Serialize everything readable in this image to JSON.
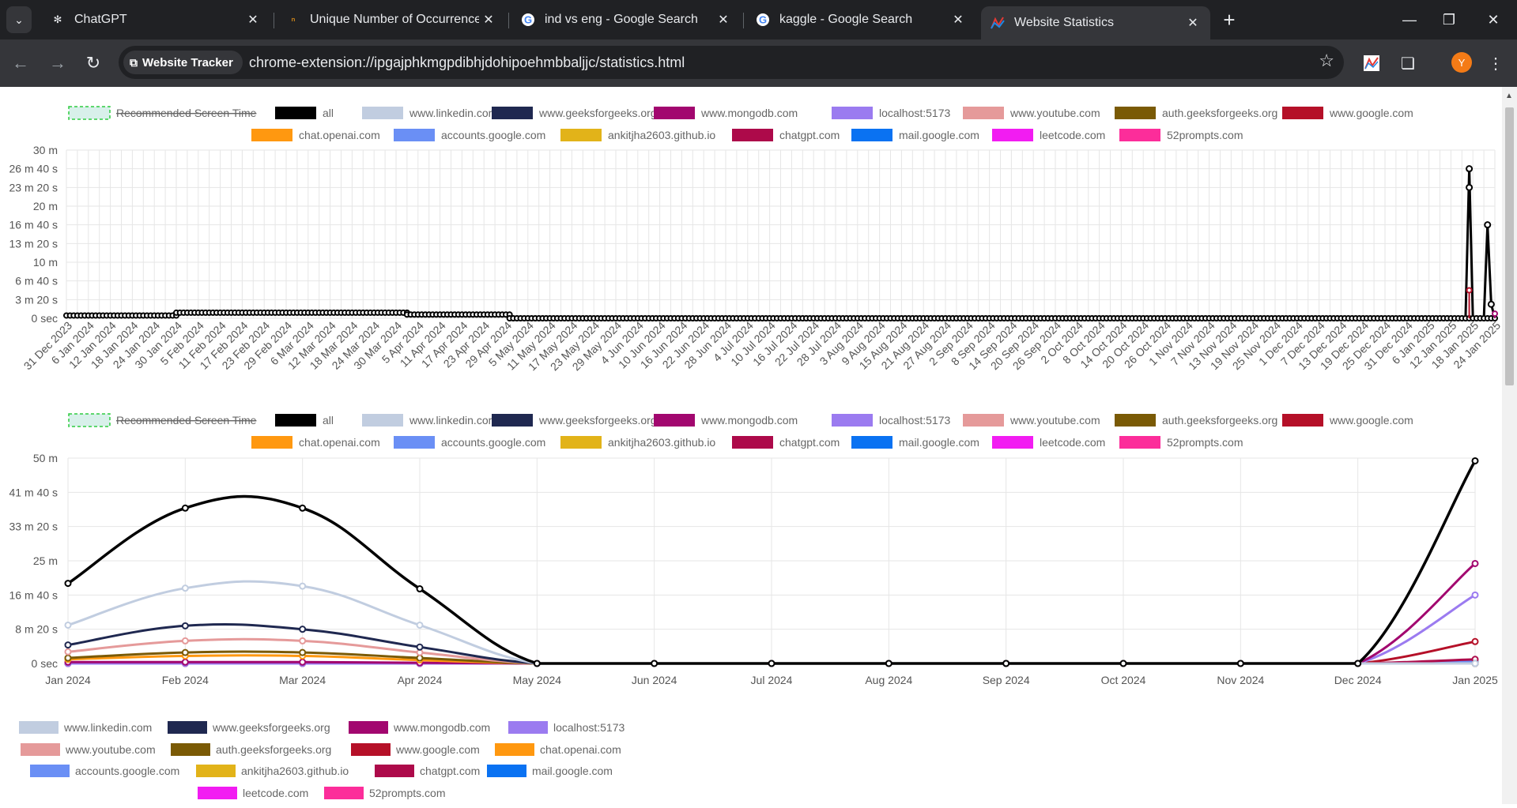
{
  "browser": {
    "tabs": [
      {
        "title": "ChatGPT",
        "favicon": "chatgpt-icon",
        "active": false
      },
      {
        "title": "Unique Number of Occurrences",
        "favicon": "leetcode-icon",
        "active": false
      },
      {
        "title": "ind vs eng - Google Search",
        "favicon": "google-icon",
        "active": false
      },
      {
        "title": "kaggle - Google Search",
        "favicon": "google-icon",
        "active": false
      },
      {
        "title": "Website Statistics",
        "favicon": "stats-icon",
        "active": true
      }
    ],
    "site_chip": "Website Tracker",
    "url": "chrome-extension://ipgajphkmgpdibhjdohipoehmbbaljjc/statistics.html",
    "avatar_letter": "Y"
  },
  "legend_items": [
    {
      "label": "Recommended Screen Time",
      "color": "#d8f0ea",
      "hidden": true
    },
    {
      "label": "all",
      "color": "#000000"
    },
    {
      "label": "www.linkedin.com",
      "color": "#c1cde0"
    },
    {
      "label": "www.geeksforgeeks.org",
      "color": "#1f2850"
    },
    {
      "label": "www.mongodb.com",
      "color": "#a2076f"
    },
    {
      "label": "localhost:5173",
      "color": "#9b7bf0"
    },
    {
      "label": "www.youtube.com",
      "color": "#e59a9a"
    },
    {
      "label": "auth.geeksforgeeks.org",
      "color": "#7a5a05"
    },
    {
      "label": "www.google.com",
      "color": "#b51028"
    },
    {
      "label": "chat.openai.com",
      "color": "#ff9810"
    },
    {
      "label": "accounts.google.com",
      "color": "#6a8ff5"
    },
    {
      "label": "ankitjha2603.github.io",
      "color": "#e2b319"
    },
    {
      "label": "chatgpt.com",
      "color": "#ad0a4a"
    },
    {
      "label": "mail.google.com",
      "color": "#0a72f2"
    },
    {
      "label": "leetcode.com",
      "color": "#f21cf2"
    },
    {
      "label": "52prompts.com",
      "color": "#fc2d9a"
    }
  ],
  "chart_data": [
    {
      "type": "line",
      "ylim_seconds": [
        0,
        1800
      ],
      "y_tick_labels": [
        "0 sec",
        "3 m 20 s",
        "6 m 40 s",
        "10 m",
        "13 m 20 s",
        "16 m 40 s",
        "20 m",
        "23 m 20 s",
        "26 m 40 s",
        "30 m"
      ],
      "x_tick_labels": [
        "31 Dec 2023",
        "6 Jan 2024",
        "12 Jan 2024",
        "18 Jan 2024",
        "24 Jan 2024",
        "30 Jan 2024",
        "5 Feb 2024",
        "11 Feb 2024",
        "17 Feb 2024",
        "23 Feb 2024",
        "29 Feb 2024",
        "6 Mar 2024",
        "12 Mar 2024",
        "18 Mar 2024",
        "24 Mar 2024",
        "30 Mar 2024",
        "5 Apr 2024",
        "11 Apr 2024",
        "17 Apr 2024",
        "23 Apr 2024",
        "29 Apr 2024",
        "5 May 2024",
        "11 May 2024",
        "17 May 2024",
        "23 May 2024",
        "29 May 2024",
        "4 Jun 2024",
        "10 Jun 2024",
        "16 Jun 2024",
        "22 Jun 2024",
        "28 Jun 2024",
        "4 Jul 2024",
        "10 Jul 2024",
        "16 Jul 2024",
        "22 Jul 2024",
        "28 Jul 2024",
        "3 Aug 2024",
        "9 Aug 2024",
        "15 Aug 2024",
        "21 Aug 2024",
        "27 Aug 2024",
        "2 Sep 2024",
        "8 Sep 2024",
        "14 Sep 2024",
        "20 Sep 2024",
        "26 Sep 2024",
        "2 Oct 2024",
        "8 Oct 2024",
        "14 Oct 2024",
        "20 Oct 2024",
        "26 Oct 2024",
        "1 Nov 2024",
        "7 Nov 2024",
        "13 Nov 2024",
        "19 Nov 2024",
        "25 Nov 2024",
        "1 Dec 2024",
        "7 Dec 2024",
        "13 Dec 2024",
        "19 Dec 2024",
        "25 Dec 2024",
        "31 Dec 2024",
        "6 Jan 2025",
        "12 Jan 2025",
        "18 Jan 2025",
        "24 Jan 2025"
      ],
      "series": [
        {
          "name": "all",
          "color": "#000000",
          "segments": [
            {
              "from": "31 Dec 2023",
              "to": "30 Jan 2024",
              "value_seconds": 30
            },
            {
              "from": "30 Jan 2024",
              "to": "2 Apr 2024",
              "value_seconds": 60
            },
            {
              "from": "2 Apr 2024",
              "to": "30 Apr 2024",
              "value_seconds": 40
            },
            {
              "from": "30 Apr 2024",
              "to": "24 Jan 2025",
              "value_seconds": 0
            }
          ],
          "peaks": [
            {
              "date": "17 Jan 2025",
              "value_seconds": 1600
            },
            {
              "date": "17 Jan 2025",
              "value_seconds": 1400
            },
            {
              "date": "22 Jan 2025",
              "value_seconds": 1000
            },
            {
              "date": "23 Jan 2025",
              "value_seconds": 150
            }
          ]
        },
        {
          "name": "www.google.com",
          "color": "#b51028",
          "peaks": [
            {
              "date": "17 Jan 2025",
              "value_seconds": 300
            }
          ]
        },
        {
          "name": "www.mongodb.com",
          "color": "#a2076f",
          "peaks": [
            {
              "date": "24 Jan 2025",
              "value_seconds": 50
            }
          ]
        }
      ]
    },
    {
      "type": "line",
      "ylim_seconds": [
        0,
        3000
      ],
      "y_tick_labels": [
        "0 sec",
        "8 m 20 s",
        "16 m 40 s",
        "25 m",
        "33 m 20 s",
        "41 m 40 s",
        "50 m"
      ],
      "x": [
        "Jan 2024",
        "Feb 2024",
        "Mar 2024",
        "Apr 2024",
        "May 2024",
        "Jun 2024",
        "Jul 2024",
        "Aug 2024",
        "Sep 2024",
        "Oct 2024",
        "Nov 2024",
        "Dec 2024",
        "Jan 2025"
      ],
      "series": [
        {
          "name": "all",
          "color": "#000000",
          "values_seconds": [
            1170,
            2270,
            2270,
            1090,
            0,
            0,
            0,
            0,
            0,
            0,
            0,
            0,
            2960
          ]
        },
        {
          "name": "www.linkedin.com",
          "color": "#c1cde0",
          "values_seconds": [
            560,
            1100,
            1130,
            560,
            0,
            0,
            0,
            0,
            0,
            0,
            0,
            0,
            0
          ]
        },
        {
          "name": "www.geeksforgeeks.org",
          "color": "#1f2850",
          "values_seconds": [
            270,
            550,
            500,
            240,
            0,
            0,
            0,
            0,
            0,
            0,
            0,
            0,
            0
          ]
        },
        {
          "name": "www.youtube.com",
          "color": "#e59a9a",
          "values_seconds": [
            170,
            330,
            330,
            160,
            0,
            0,
            0,
            0,
            0,
            0,
            0,
            0,
            0
          ]
        },
        {
          "name": "auth.geeksforgeeks.org",
          "color": "#7a5a05",
          "values_seconds": [
            80,
            160,
            160,
            80,
            0,
            0,
            0,
            0,
            0,
            0,
            0,
            0,
            0
          ]
        },
        {
          "name": "chat.openai.com",
          "color": "#ff9810",
          "values_seconds": [
            60,
            110,
            110,
            50,
            0,
            0,
            0,
            0,
            0,
            0,
            0,
            0,
            0
          ]
        },
        {
          "name": "www.mongodb.com",
          "color": "#a2076f",
          "values_seconds": [
            20,
            20,
            20,
            10,
            0,
            0,
            0,
            0,
            0,
            0,
            0,
            0,
            1460
          ]
        },
        {
          "name": "localhost:5173",
          "color": "#9b7bf0",
          "values_seconds": [
            0,
            0,
            0,
            0,
            0,
            0,
            0,
            0,
            0,
            0,
            0,
            0,
            1000
          ]
        },
        {
          "name": "www.google.com",
          "color": "#b51028",
          "values_seconds": [
            0,
            0,
            0,
            0,
            0,
            0,
            0,
            0,
            0,
            0,
            0,
            0,
            320
          ]
        },
        {
          "name": "chatgpt.com",
          "color": "#ad0a4a",
          "values_seconds": [
            0,
            0,
            0,
            0,
            0,
            0,
            0,
            0,
            0,
            0,
            0,
            0,
            60
          ]
        },
        {
          "name": "accounts.google.com",
          "color": "#6a8ff5",
          "values_seconds": [
            0,
            0,
            0,
            0,
            0,
            0,
            0,
            0,
            0,
            0,
            0,
            0,
            30
          ]
        }
      ]
    },
    {
      "type": "pie",
      "legend_items": [
        {
          "label": "www.linkedin.com",
          "color": "#c1cde0"
        },
        {
          "label": "www.geeksforgeeks.org",
          "color": "#1f2850"
        },
        {
          "label": "www.mongodb.com",
          "color": "#a2076f"
        },
        {
          "label": "localhost:5173",
          "color": "#9b7bf0"
        },
        {
          "label": "www.youtube.com",
          "color": "#e59a9a"
        },
        {
          "label": "auth.geeksforgeeks.org",
          "color": "#7a5a05"
        },
        {
          "label": "www.google.com",
          "color": "#b51028"
        },
        {
          "label": "chat.openai.com",
          "color": "#ff9810"
        },
        {
          "label": "accounts.google.com",
          "color": "#6a8ff5"
        },
        {
          "label": "ankitjha2603.github.io",
          "color": "#e2b319"
        },
        {
          "label": "chatgpt.com",
          "color": "#ad0a4a"
        },
        {
          "label": "mail.google.com",
          "color": "#0a72f2"
        },
        {
          "label": "leetcode.com",
          "color": "#f21cf2"
        },
        {
          "label": "52prompts.com",
          "color": "#fc2d9a"
        }
      ]
    }
  ]
}
